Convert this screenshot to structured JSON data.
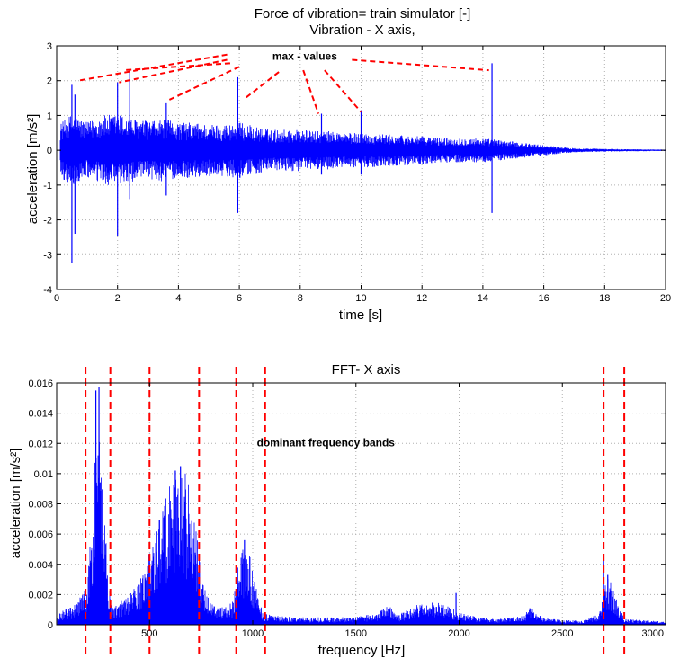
{
  "chart_data": [
    {
      "type": "line",
      "title": "Force of vibration= train simulator [-]",
      "subtitle": "Vibration - X axis,",
      "xlabel": "time [s]",
      "ylabel": "acceleration [m/s²]",
      "xlim": [
        0,
        20
      ],
      "ylim": [
        -4,
        3
      ],
      "xticks": [
        0,
        2,
        4,
        6,
        8,
        10,
        12,
        14,
        16,
        18,
        20
      ],
      "yticks": [
        -4,
        -3,
        -2,
        -1,
        0,
        1,
        2,
        3
      ],
      "grid": true,
      "series_color": "#0000ff",
      "annotation_color": "#ff0000",
      "envelope": {
        "t": [
          0.0,
          0.5,
          1.0,
          1.5,
          2.0,
          2.5,
          3.0,
          3.5,
          4.0,
          4.5,
          5.0,
          5.5,
          6.0,
          6.5,
          7.0,
          7.5,
          8.0,
          8.5,
          9.0,
          9.5,
          10.0,
          11.0,
          12.0,
          13.0,
          14.0,
          15.0,
          16.0,
          16.5,
          17.0,
          18.0,
          19.0,
          20.0
        ],
        "amplitude": [
          0.7,
          1.05,
          0.8,
          1.0,
          1.05,
          0.9,
          0.85,
          0.9,
          0.8,
          0.8,
          0.75,
          0.75,
          0.8,
          0.7,
          0.6,
          0.6,
          0.6,
          0.55,
          0.55,
          0.5,
          0.5,
          0.45,
          0.4,
          0.35,
          0.35,
          0.25,
          0.15,
          0.1,
          0.06,
          0.04,
          0.03,
          0.02
        ]
      },
      "spikes": [
        {
          "t": 0.5,
          "max": 1.88,
          "min": -3.25
        },
        {
          "t": 0.6,
          "max": 1.6,
          "min": -2.4
        },
        {
          "t": 2.0,
          "max": 1.95,
          "min": -2.45
        },
        {
          "t": 2.4,
          "max": 2.3,
          "min": -1.4
        },
        {
          "t": 3.6,
          "max": 1.35,
          "min": -1.3
        },
        {
          "t": 5.95,
          "max": 2.1,
          "min": -1.8
        },
        {
          "t": 8.7,
          "max": 1.05,
          "min": -0.7
        },
        {
          "t": 10.0,
          "max": 1.15,
          "min": -0.7
        },
        {
          "t": 14.3,
          "max": 2.5,
          "min": -1.8
        }
      ],
      "annotation": {
        "text": "max - values",
        "label_t": 8.15,
        "label_y": 2.6,
        "lines": [
          {
            "from": [
              5.6,
              2.75
            ],
            "to": [
              0.7,
              2.0
            ]
          },
          {
            "from": [
              5.6,
              2.6
            ],
            "to": [
              2.05,
              1.95
            ]
          },
          {
            "from": [
              5.7,
              2.5
            ],
            "to": [
              2.2,
              2.3
            ]
          },
          {
            "from": [
              6.0,
              2.4
            ],
            "to": [
              3.7,
              1.45
            ]
          },
          {
            "from": [
              7.3,
              2.25
            ],
            "to": [
              6.2,
              1.5
            ]
          },
          {
            "from": [
              8.1,
              2.3
            ],
            "to": [
              8.6,
              1.05
            ]
          },
          {
            "from": [
              8.8,
              2.3
            ],
            "to": [
              10.0,
              1.1
            ]
          },
          {
            "from": [
              9.7,
              2.6
            ],
            "to": [
              14.2,
              2.3
            ]
          }
        ]
      }
    },
    {
      "type": "line",
      "title": "FFT- X axis",
      "xlabel": "frequency [Hz]",
      "ylabel": "acceleration [m/s²]",
      "xlim": [
        50,
        3000
      ],
      "ylim": [
        0,
        0.016
      ],
      "xticks": [
        500,
        1000,
        1500,
        2000,
        2500,
        3000
      ],
      "yticks": [
        0,
        0.002,
        0.004,
        0.006,
        0.008,
        0.01,
        0.012,
        0.014,
        0.016
      ],
      "ytick_labels": [
        "0",
        "0.002",
        "0.004",
        "0.006",
        "0.008",
        "0.01",
        "0.012",
        "0.014",
        "0.016"
      ],
      "grid": true,
      "series_color": "#0000ff",
      "annotation_color": "#ff0000",
      "annotation_text": "dominant frequency bands",
      "annotation_f": 1020,
      "annotation_y": 0.0118,
      "band_lines_hz": [
        190,
        310,
        500,
        740,
        920,
        1060,
        2700,
        2800
      ],
      "envelope": {
        "f": [
          50,
          150,
          200,
          220,
          240,
          250,
          260,
          280,
          300,
          320,
          400,
          450,
          500,
          550,
          600,
          650,
          700,
          720,
          760,
          800,
          850,
          900,
          930,
          960,
          980,
          1000,
          1050,
          1100,
          1200,
          1500,
          1600,
          1650,
          1700,
          1800,
          1900,
          1950,
          2000,
          2100,
          2200,
          2300,
          2350,
          2400,
          2500,
          2600,
          2680,
          2720,
          2760,
          2800,
          2900,
          3000
        ],
        "amp": [
          0.0008,
          0.0014,
          0.003,
          0.007,
          0.012,
          0.0155,
          0.013,
          0.009,
          0.003,
          0.0012,
          0.002,
          0.003,
          0.005,
          0.0075,
          0.0098,
          0.0105,
          0.0095,
          0.007,
          0.0028,
          0.0015,
          0.0012,
          0.0015,
          0.004,
          0.0055,
          0.005,
          0.0035,
          0.0008,
          0.0006,
          0.0005,
          0.0005,
          0.0008,
          0.0016,
          0.0006,
          0.0014,
          0.0015,
          0.0013,
          0.0008,
          0.0005,
          0.0004,
          0.0006,
          0.0012,
          0.0005,
          0.0003,
          0.0003,
          0.0008,
          0.0034,
          0.0018,
          0.0004,
          0.0003,
          0.0002
        ]
      },
      "spikes": [
        {
          "f": 240,
          "amp": 0.0155
        },
        {
          "f": 255,
          "amp": 0.0157
        },
        {
          "f": 625,
          "amp": 0.0102
        },
        {
          "f": 650,
          "amp": 0.0105
        },
        {
          "f": 960,
          "amp": 0.0056
        },
        {
          "f": 1985,
          "amp": 0.0021
        },
        {
          "f": 2700,
          "amp": 0.0043
        },
        {
          "f": 2720,
          "amp": 0.0033
        }
      ]
    }
  ]
}
